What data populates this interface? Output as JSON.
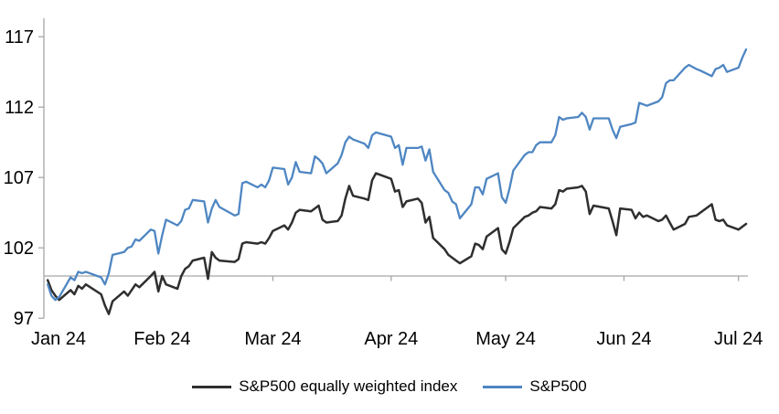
{
  "chart_data": {
    "type": "line",
    "title": "",
    "legend_position": "bottom",
    "grid": "single horizontal baseline at 100",
    "x_axis": {
      "ticks": [
        {
          "label": "Jan 24",
          "date": "2024-01-01",
          "label_x": 64
        },
        {
          "label": "Feb 24",
          "date": "2024-02-01"
        },
        {
          "label": "Mar 24",
          "date": "2024-03-01"
        },
        {
          "label": "Apr 24",
          "date": "2024-04-01"
        },
        {
          "label": "May 24",
          "date": "2024-05-01"
        },
        {
          "label": "Jun 24",
          "date": "2024-06-01"
        },
        {
          "label": "Jul 24",
          "date": "2024-07-01"
        }
      ]
    },
    "y_axis": {
      "ticks": [
        97,
        102,
        107,
        112,
        117
      ],
      "ylim": [
        97,
        118
      ],
      "baseline_value": 100
    },
    "dates": [
      "2024-01-02",
      "2024-01-03",
      "2024-01-04",
      "2024-01-05",
      "2024-01-08",
      "2024-01-09",
      "2024-01-10",
      "2024-01-11",
      "2024-01-12",
      "2024-01-16",
      "2024-01-17",
      "2024-01-18",
      "2024-01-19",
      "2024-01-22",
      "2024-01-23",
      "2024-01-24",
      "2024-01-25",
      "2024-01-26",
      "2024-01-29",
      "2024-01-30",
      "2024-01-31",
      "2024-02-01",
      "2024-02-02",
      "2024-02-05",
      "2024-02-06",
      "2024-02-07",
      "2024-02-08",
      "2024-02-09",
      "2024-02-12",
      "2024-02-13",
      "2024-02-14",
      "2024-02-15",
      "2024-02-16",
      "2024-02-20",
      "2024-02-21",
      "2024-02-22",
      "2024-02-23",
      "2024-02-26",
      "2024-02-27",
      "2024-02-28",
      "2024-02-29",
      "2024-03-01",
      "2024-03-04",
      "2024-03-05",
      "2024-03-06",
      "2024-03-07",
      "2024-03-08",
      "2024-03-11",
      "2024-03-12",
      "2024-03-13",
      "2024-03-14",
      "2024-03-15",
      "2024-03-18",
      "2024-03-19",
      "2024-03-20",
      "2024-03-21",
      "2024-03-22",
      "2024-03-25",
      "2024-03-26",
      "2024-03-27",
      "2024-03-28",
      "2024-04-01",
      "2024-04-02",
      "2024-04-03",
      "2024-04-04",
      "2024-04-05",
      "2024-04-08",
      "2024-04-09",
      "2024-04-10",
      "2024-04-11",
      "2024-04-12",
      "2024-04-15",
      "2024-04-16",
      "2024-04-17",
      "2024-04-18",
      "2024-04-19",
      "2024-04-22",
      "2024-04-23",
      "2024-04-24",
      "2024-04-25",
      "2024-04-26",
      "2024-04-29",
      "2024-04-30",
      "2024-05-01",
      "2024-05-02",
      "2024-05-03",
      "2024-05-06",
      "2024-05-07",
      "2024-05-08",
      "2024-05-09",
      "2024-05-10",
      "2024-05-13",
      "2024-05-14",
      "2024-05-15",
      "2024-05-16",
      "2024-05-17",
      "2024-05-20",
      "2024-05-21",
      "2024-05-22",
      "2024-05-23",
      "2024-05-24",
      "2024-05-28",
      "2024-05-29",
      "2024-05-30",
      "2024-05-31",
      "2024-06-03",
      "2024-06-04",
      "2024-06-05",
      "2024-06-06",
      "2024-06-07",
      "2024-06-10",
      "2024-06-11",
      "2024-06-12",
      "2024-06-13",
      "2024-06-14",
      "2024-06-17",
      "2024-06-18",
      "2024-06-20",
      "2024-06-21",
      "2024-06-24",
      "2024-06-25",
      "2024-06-26",
      "2024-06-27",
      "2024-06-28",
      "2024-07-01",
      "2024-07-02",
      "2024-07-03"
    ],
    "series": [
      {
        "name": "S&P500 equally weighted index",
        "color": "#2f2f2f",
        "values": [
          99.7,
          99.0,
          98.6,
          98.3,
          99.0,
          98.7,
          99.3,
          99.1,
          99.4,
          98.7,
          97.9,
          97.3,
          98.2,
          98.9,
          98.6,
          99.0,
          99.4,
          99.2,
          100.0,
          100.3,
          98.9,
          100.0,
          99.4,
          99.1,
          100.0,
          100.5,
          100.7,
          101.1,
          101.3,
          99.8,
          101.7,
          101.3,
          101.1,
          101.0,
          101.2,
          102.3,
          102.4,
          102.3,
          102.4,
          102.3,
          102.7,
          103.2,
          103.6,
          103.3,
          103.8,
          104.5,
          104.7,
          104.6,
          104.8,
          105.0,
          104.0,
          103.8,
          103.9,
          104.3,
          105.5,
          106.4,
          105.7,
          105.5,
          105.4,
          106.8,
          107.3,
          106.9,
          106.0,
          106.1,
          104.9,
          105.3,
          105.5,
          105.2,
          103.8,
          104.2,
          102.7,
          101.9,
          101.5,
          101.3,
          101.1,
          100.9,
          101.4,
          102.3,
          102.2,
          101.9,
          102.8,
          103.4,
          101.9,
          101.6,
          102.4,
          103.4,
          104.2,
          104.3,
          104.5,
          104.6,
          104.9,
          104.8,
          105.1,
          106.1,
          106.0,
          106.2,
          106.3,
          106.4,
          106.0,
          104.4,
          105.0,
          104.8,
          103.9,
          102.9,
          104.8,
          104.7,
          104.1,
          104.5,
          104.2,
          104.3,
          103.9,
          104.0,
          104.3,
          103.8,
          103.3,
          103.7,
          104.2,
          104.3,
          104.5,
          105.1,
          104.0,
          103.9,
          104.0,
          103.6,
          103.3,
          103.5,
          103.7
        ]
      },
      {
        "name": "S&P500",
        "color": "#4e86c2",
        "values": [
          99.4,
          98.6,
          98.3,
          98.5,
          99.9,
          99.7,
          100.3,
          100.2,
          100.3,
          99.9,
          99.4,
          100.2,
          101.5,
          101.7,
          102.0,
          102.1,
          102.6,
          102.5,
          103.3,
          103.2,
          101.6,
          102.9,
          104.0,
          103.6,
          103.9,
          104.7,
          104.8,
          105.4,
          105.3,
          103.8,
          104.8,
          105.4,
          104.9,
          104.3,
          104.4,
          106.6,
          106.7,
          106.3,
          106.5,
          106.3,
          106.8,
          107.7,
          107.6,
          106.5,
          107.0,
          108.1,
          107.4,
          107.3,
          108.5,
          108.3,
          108.0,
          107.3,
          108.0,
          108.6,
          109.5,
          109.9,
          109.7,
          109.4,
          109.1,
          110.0,
          110.2,
          109.9,
          109.1,
          109.3,
          107.9,
          109.1,
          109.1,
          109.2,
          108.2,
          109.0,
          107.4,
          106.1,
          105.9,
          105.3,
          105.1,
          104.1,
          105.1,
          106.3,
          106.3,
          105.8,
          106.9,
          107.3,
          105.6,
          105.2,
          106.2,
          107.5,
          108.6,
          108.8,
          108.8,
          109.3,
          109.5,
          109.5,
          110.0,
          111.3,
          111.1,
          111.2,
          111.3,
          111.6,
          111.3,
          110.4,
          111.2,
          111.2,
          110.4,
          109.8,
          110.6,
          110.8,
          110.9,
          112.3,
          112.2,
          112.1,
          112.4,
          112.7,
          113.7,
          113.9,
          113.9,
          114.8,
          115.0,
          114.7,
          114.6,
          114.2,
          114.7,
          114.8,
          115.0,
          114.5,
          114.8,
          115.5,
          116.1
        ]
      }
    ]
  },
  "colors": {
    "axis": "#a6a6a6",
    "label_text": "#000000",
    "background": "#ffffff"
  }
}
